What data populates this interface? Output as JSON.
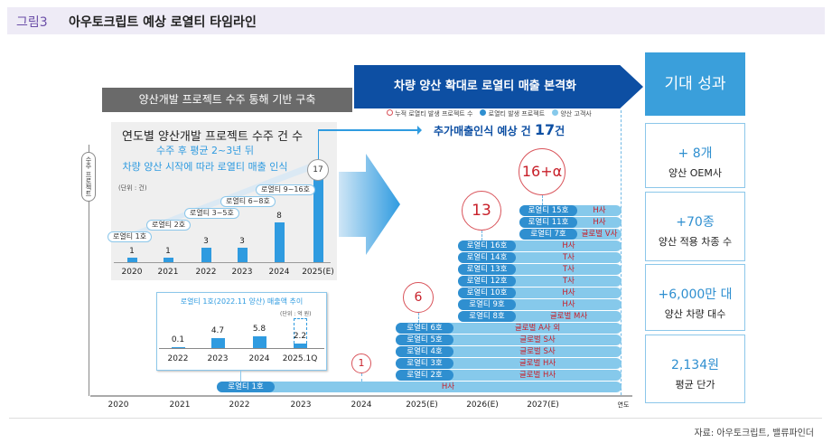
{
  "header": {
    "figure_no": "그림3",
    "title": "아우토크립트 예상 로열티 타임라인"
  },
  "phase1_label": "양산개발 프로젝트 수주 통해 기반 구축",
  "phase2_label": "차량 양산 확대로 로열티 매출 본격화",
  "outcomes": {
    "title": "기대 성과",
    "items": [
      {
        "value": "+ 8개",
        "label": "양산 OEM사"
      },
      {
        "value": "+70종",
        "label": "양산 적용 차종 수"
      },
      {
        "value": "+6,000만 대",
        "label": "양산 차량 대수"
      },
      {
        "value": "2,134원",
        "label": "평균 단가"
      }
    ]
  },
  "side_label": "수주 프로젝트",
  "orders_chart": {
    "title": "연도별 양산개발 프로젝트 수주 건 수",
    "subtitle1": "수주 후 평균 2~3년 뒤",
    "subtitle2": "차량 양산 시작에 따라 로열티 매출 인식",
    "unit": "(단위 : 건)",
    "categories": [
      "2020",
      "2021",
      "2022",
      "2023",
      "2024",
      "2025(E)"
    ],
    "values": [
      1,
      1,
      3,
      3,
      8,
      17
    ],
    "value_labels": [
      "1",
      "1",
      "3",
      "3",
      "8",
      "17"
    ],
    "tags": [
      "로열티 1호",
      "로열티 2호",
      "로열티 3~5호",
      "로열티 6~8호",
      "로열티 9~16호"
    ]
  },
  "revenue_chart": {
    "title": "로열티 1호(2022.11 양산) 매출액 추이",
    "unit": "(단위 : 억 원)",
    "categories": [
      "2022",
      "2023",
      "2024",
      "2025.1Q"
    ],
    "values": [
      0.1,
      4.7,
      5.8,
      2.2
    ],
    "value_labels": [
      "0.1",
      "4.7",
      "5.8",
      "2.2"
    ]
  },
  "legend": [
    "누적 로열티 발생 프로젝트 수",
    "로열티 발생 프로젝트",
    "양산 고객사"
  ],
  "headline": {
    "text": "추가매출인식 예상 건 ",
    "num": "17",
    "suffix": "건"
  },
  "cumulative": [
    {
      "year": "2024",
      "label": "1"
    },
    {
      "year": "2025(E)",
      "label": "6"
    },
    {
      "year": "2026(E)",
      "label": "13"
    },
    {
      "year": "2027(E)",
      "label": "16+α"
    }
  ],
  "timeline": [
    {
      "name": "로열티 1호",
      "client": "H사"
    },
    {
      "name": "로열티 2호",
      "client": "글로벌 H사"
    },
    {
      "name": "로열티 3호",
      "client": "글로벌 H사"
    },
    {
      "name": "로열티 4호",
      "client": "글로벌 S사"
    },
    {
      "name": "로열티 5호",
      "client": "글로벌 S사"
    },
    {
      "name": "로열티 6호",
      "client": "글로벌 A사 외"
    },
    {
      "name": "로열티 8호",
      "client": "글로벌 M사"
    },
    {
      "name": "로열티 9호",
      "client": "H사"
    },
    {
      "name": "로열티 10호",
      "client": "H사"
    },
    {
      "name": "로열티 12호",
      "client": "T사"
    },
    {
      "name": "로열티 13호",
      "client": "T사"
    },
    {
      "name": "로열티 14호",
      "client": "T사"
    },
    {
      "name": "로열티 16호",
      "client": "H사"
    },
    {
      "name": "로열티 7호",
      "client": "글로벌 V사"
    },
    {
      "name": "로열티 11호",
      "client": "H사"
    },
    {
      "name": "로열티 15호",
      "client": "H사"
    }
  ],
  "axis": {
    "years": [
      "2020",
      "2021",
      "2022",
      "2023",
      "2024",
      "2025(E)",
      "2026(E)",
      "2027(E)"
    ],
    "unit": "연도"
  },
  "source": "자료: 아우토크립트, 밸류파인더",
  "colors": {
    "blue": "#2f9be0",
    "dark_blue": "#0d4fa3",
    "red": "#c8202a"
  }
}
